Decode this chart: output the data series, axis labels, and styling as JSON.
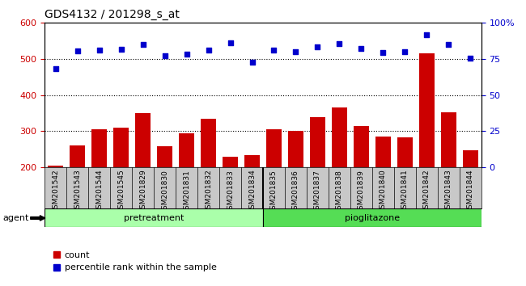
{
  "title": "GDS4132 / 201298_s_at",
  "samples": [
    "GSM201542",
    "GSM201543",
    "GSM201544",
    "GSM201545",
    "GSM201829",
    "GSM201830",
    "GSM201831",
    "GSM201832",
    "GSM201833",
    "GSM201834",
    "GSM201835",
    "GSM201836",
    "GSM201837",
    "GSM201838",
    "GSM201839",
    "GSM201840",
    "GSM201841",
    "GSM201842",
    "GSM201843",
    "GSM201844"
  ],
  "bar_values": [
    205,
    260,
    305,
    310,
    350,
    258,
    295,
    335,
    230,
    233,
    305,
    300,
    340,
    365,
    315,
    285,
    283,
    515,
    352,
    248
  ],
  "scatter_values": [
    473,
    522,
    524,
    526,
    540,
    510,
    513,
    524,
    545,
    492,
    524,
    521,
    534,
    542,
    528,
    518,
    521,
    568,
    540,
    503
  ],
  "bar_color": "#cc0000",
  "scatter_color": "#0000cc",
  "left_ylim": [
    200,
    600
  ],
  "left_yticks": [
    200,
    300,
    400,
    500,
    600
  ],
  "right_yticks": [
    0,
    25,
    50,
    75,
    100
  ],
  "right_yticklabels": [
    "0",
    "25",
    "50",
    "75",
    "100%"
  ],
  "hlines": [
    300,
    400,
    500
  ],
  "pretreatment_count": 10,
  "group_labels": [
    "pretreatment",
    "pioglitazone"
  ],
  "group_color_pre": "#aaffaa",
  "group_color_pio": "#55dd55",
  "xlabel_agent": "agent",
  "legend_bar": "count",
  "legend_scatter": "percentile rank within the sample",
  "bar_width": 0.7,
  "tick_label_fontsize": 6.5,
  "title_fontsize": 10,
  "xtick_bg_color": "#c8c8c8"
}
